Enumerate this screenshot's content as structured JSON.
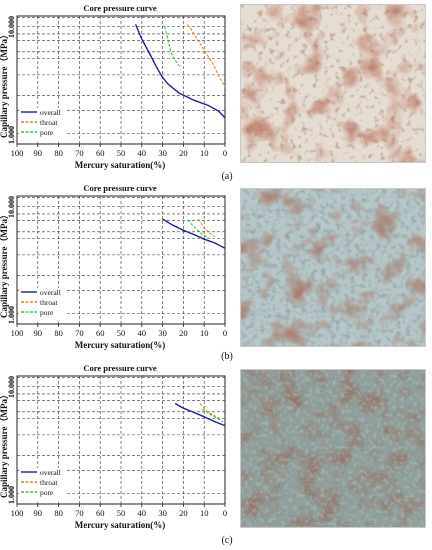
{
  "chart_data": [
    {
      "type": "line",
      "title": "Core pressure curve",
      "xlabel": "Mercury saturation(%)",
      "ylabel": "Capillary pressure（MPa）",
      "x_reversed": true,
      "xlim": [
        0,
        100
      ],
      "xticks": [
        "100",
        "90",
        "80",
        "70",
        "60",
        "50",
        "40",
        "30",
        "20",
        "10",
        "0"
      ],
      "yscale": "log",
      "yticks": [
        "1.000",
        "10.000"
      ],
      "grid": true,
      "legend_position": "bottom-left",
      "series": [
        {
          "name": "overall",
          "color": "#1f1fa0",
          "dash": "solid",
          "x": [
            43,
            40,
            36,
            33,
            30,
            27,
            22,
            15,
            8,
            3,
            0
          ],
          "y": [
            8.6,
            6.6,
            5.0,
            4.0,
            3.3,
            2.9,
            2.5,
            2.2,
            2.0,
            1.8,
            1.6
          ]
        },
        {
          "name": "throat",
          "color": "#e08a2a",
          "dash": "dash",
          "x": [
            18,
            15,
            12,
            9,
            6,
            3,
            0
          ],
          "y": [
            8.6,
            7.3,
            6.1,
            5.1,
            4.3,
            3.4,
            2.8
          ]
        },
        {
          "name": "pore",
          "color": "#2ec84a",
          "dash": "dash",
          "x": [
            29,
            28,
            27,
            26,
            24,
            22,
            21
          ],
          "y": [
            8.3,
            7.1,
            6.1,
            5.2,
            4.5,
            4.1,
            4.0
          ]
        }
      ]
    },
    {
      "type": "line",
      "title": "Core pressure curve",
      "xlabel": "Mercury saturation(%)",
      "ylabel": "Capillary pressure（MPa）",
      "x_reversed": true,
      "xlim": [
        0,
        100
      ],
      "xticks": [
        "100",
        "90",
        "80",
        "70",
        "60",
        "50",
        "40",
        "30",
        "20",
        "10",
        "0"
      ],
      "yscale": "log",
      "yticks": [
        "1.000",
        "10.000"
      ],
      "grid": true,
      "legend_position": "bottom-left",
      "series": [
        {
          "name": "overall",
          "color": "#1f1fa0",
          "dash": "solid",
          "x": [
            30,
            25,
            20,
            15,
            10,
            5,
            0
          ],
          "y": [
            6.6,
            5.9,
            5.4,
            5.0,
            4.6,
            4.3,
            3.9
          ]
        },
        {
          "name": "throat",
          "color": "#e08a2a",
          "dash": "dash",
          "x": [
            13,
            11,
            9,
            7,
            5
          ],
          "y": [
            6.6,
            6.0,
            5.4,
            5.1,
            4.8
          ]
        },
        {
          "name": "pore",
          "color": "#2ec84a",
          "dash": "dash",
          "x": [
            18,
            16,
            14,
            12,
            10,
            8
          ],
          "y": [
            6.5,
            6.0,
            5.6,
            5.2,
            4.9,
            4.7
          ]
        }
      ]
    },
    {
      "type": "line",
      "title": "Core pressure curve",
      "xlabel": "Mercury saturation(%)",
      "ylabel": "Capillary pressure（MPa）",
      "x_reversed": true,
      "xlim": [
        0,
        100
      ],
      "xticks": [
        "100",
        "90",
        "80",
        "70",
        "60",
        "50",
        "40",
        "30",
        "20",
        "10",
        "0"
      ],
      "yscale": "log",
      "yticks": [
        "1.000",
        "10.000"
      ],
      "grid": true,
      "legend_position": "bottom-left",
      "series": [
        {
          "name": "overall",
          "color": "#1f1fa0",
          "dash": "solid",
          "x": [
            24,
            20,
            15,
            10,
            5,
            0
          ],
          "y": [
            6.1,
            5.6,
            5.2,
            4.8,
            4.4,
            4.1
          ]
        },
        {
          "name": "throat",
          "color": "#e08a2a",
          "dash": "dash",
          "x": [
            12,
            10,
            8,
            6,
            4,
            2
          ],
          "y": [
            6.1,
            5.6,
            5.2,
            5.0,
            4.8,
            4.6
          ]
        },
        {
          "name": "pore",
          "color": "#2ec84a",
          "dash": "dash",
          "x": [
            11,
            9,
            7,
            5,
            3,
            1
          ],
          "y": [
            5.5,
            5.3,
            5.0,
            4.8,
            4.6,
            4.4
          ]
        }
      ]
    }
  ],
  "panels": [
    {
      "label": "(a)",
      "micrograph": "thin-section micrograph (a)"
    },
    {
      "label": "(b)",
      "micrograph": "thin-section micrograph (b)"
    },
    {
      "label": "(c)",
      "micrograph": "thin-section micrograph (c)"
    }
  ]
}
